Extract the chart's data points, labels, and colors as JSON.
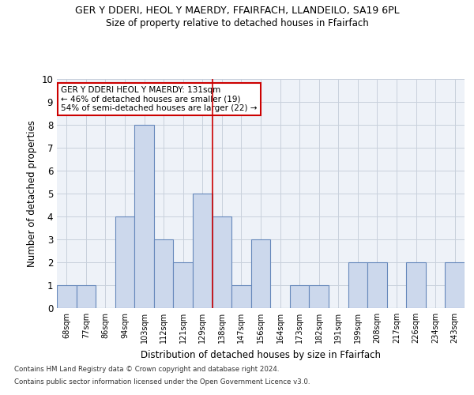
{
  "title_main": "GER Y DDERI, HEOL Y MAERDY, FFAIRFACH, LLANDEILO, SA19 6PL",
  "title_sub": "Size of property relative to detached houses in Ffairfach",
  "xlabel": "Distribution of detached houses by size in Ffairfach",
  "ylabel": "Number of detached properties",
  "categories": [
    "68sqm",
    "77sqm",
    "86sqm",
    "94sqm",
    "103sqm",
    "112sqm",
    "121sqm",
    "129sqm",
    "138sqm",
    "147sqm",
    "156sqm",
    "164sqm",
    "173sqm",
    "182sqm",
    "191sqm",
    "199sqm",
    "208sqm",
    "217sqm",
    "226sqm",
    "234sqm",
    "243sqm"
  ],
  "values": [
    1,
    1,
    0,
    4,
    8,
    3,
    2,
    5,
    4,
    1,
    3,
    0,
    1,
    1,
    0,
    2,
    2,
    0,
    2,
    0,
    2
  ],
  "bar_color": "#ccd8ec",
  "bar_edge_color": "#6688bb",
  "ylim": [
    0,
    10
  ],
  "yticks": [
    0,
    1,
    2,
    3,
    4,
    5,
    6,
    7,
    8,
    9,
    10
  ],
  "vline_x": 7.5,
  "vline_color": "#cc0000",
  "annotation_title": "GER Y DDERI HEOL Y MAERDY: 131sqm",
  "annotation_line1": "← 46% of detached houses are smaller (19)",
  "annotation_line2": "54% of semi-detached houses are larger (22) →",
  "annotation_box_color": "#cc0000",
  "footer_line1": "Contains HM Land Registry data © Crown copyright and database right 2024.",
  "footer_line2": "Contains public sector information licensed under the Open Government Licence v3.0.",
  "bg_color": "#eef2f8",
  "grid_color": "#c8d0dc"
}
